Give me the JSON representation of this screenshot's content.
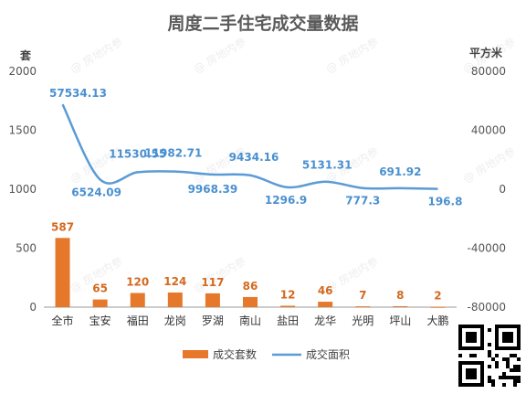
{
  "chart_data": {
    "type": "bar+line",
    "title": "周度二手住宅成交量数据",
    "categories": [
      "全市",
      "宝安",
      "福田",
      "龙岗",
      "罗湖",
      "南山",
      "盐田",
      "龙华",
      "光明",
      "坪山",
      "大鹏"
    ],
    "series": [
      {
        "name": "成交套数",
        "type": "bar",
        "axis": "left",
        "color": "#e5782b",
        "values": [
          587,
          65,
          120,
          124,
          117,
          86,
          12,
          46,
          7,
          8,
          2
        ]
      },
      {
        "name": "成交面积",
        "type": "line",
        "axis": "right",
        "color": "#5b9bd5",
        "values": [
          57534.13,
          6524.09,
          11530.55,
          11982.71,
          9968.39,
          9434.16,
          1296.9,
          5131.31,
          777.3,
          691.92,
          196.8
        ]
      }
    ],
    "line_label_text": [
      "57534.13",
      "6524.09",
      "11530.55",
      "11982.71",
      "9968.39",
      "9434.16",
      "1296.9",
      "5131.31",
      "777.3",
      "691.92",
      "196.8"
    ],
    "left_axis": {
      "unit": "套",
      "ticks": [
        0,
        500,
        1000,
        1500,
        2000
      ]
    },
    "right_axis": {
      "unit": "平方米",
      "ticks": [
        -80000,
        -40000,
        0,
        40000,
        80000
      ]
    },
    "legend_position": "bottom",
    "grid": false
  },
  "watermark_text": "房地内参"
}
